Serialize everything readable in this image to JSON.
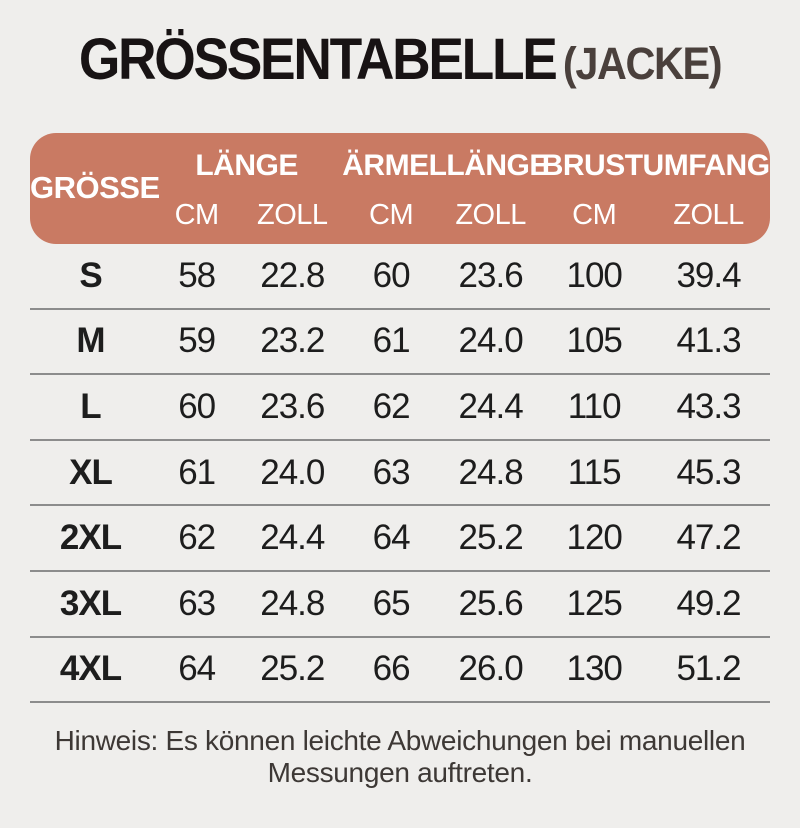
{
  "title": {
    "main": "GRÖSSENTABELLE",
    "suffix": "(JACKE)"
  },
  "table": {
    "size_label": "GRÖSSE",
    "groups": [
      {
        "label": "LÄNGE",
        "units": [
          "CM",
          "ZOLL"
        ]
      },
      {
        "label": "ÄRMELLÄNGE",
        "units": [
          "CM",
          "ZOLL"
        ]
      },
      {
        "label": "BRUSTUMFANG",
        "units": [
          "CM",
          "ZOLL"
        ]
      }
    ],
    "rows": [
      {
        "size": "S",
        "values": [
          "58",
          "22.8",
          "60",
          "23.6",
          "100",
          "39.4"
        ]
      },
      {
        "size": "M",
        "values": [
          "59",
          "23.2",
          "61",
          "24.0",
          "105",
          "41.3"
        ]
      },
      {
        "size": "L",
        "values": [
          "60",
          "23.6",
          "62",
          "24.4",
          "110",
          "43.3"
        ]
      },
      {
        "size": "XL",
        "values": [
          "61",
          "24.0",
          "63",
          "24.8",
          "115",
          "45.3"
        ]
      },
      {
        "size": "2XL",
        "values": [
          "62",
          "24.4",
          "64",
          "25.2",
          "120",
          "47.2"
        ]
      },
      {
        "size": "3XL",
        "values": [
          "63",
          "24.8",
          "65",
          "25.6",
          "125",
          "49.2"
        ]
      },
      {
        "size": "4XL",
        "values": [
          "64",
          "25.2",
          "66",
          "26.0",
          "130",
          "51.2"
        ]
      }
    ]
  },
  "note_lines": [
    "Hinweis: Es können leichte Abweichungen bei manuellen",
    "Messungen auftreten."
  ],
  "colors": {
    "background": "#efeeec",
    "accent": "#c97a63",
    "header_text": "#ffffff",
    "title": "#181314",
    "title_suffix": "#4a403c",
    "divider": "#8c8c8c",
    "body_text": "#1d1d1d",
    "note_text": "#3d3835"
  },
  "chart_data": {
    "type": "table",
    "title": "GRÖSSENTABELLE (JACKE)",
    "columns": [
      "GRÖSSE",
      "LÄNGE CM",
      "LÄNGE ZOLL",
      "ÄRMELLÄNGE CM",
      "ÄRMELLÄNGE ZOLL",
      "BRUSTUMFANG CM",
      "BRUSTUMFANG ZOLL"
    ],
    "rows": [
      [
        "S",
        58,
        22.8,
        60,
        23.6,
        100,
        39.4
      ],
      [
        "M",
        59,
        23.2,
        61,
        24.0,
        105,
        41.3
      ],
      [
        "L",
        60,
        23.6,
        62,
        24.4,
        110,
        43.3
      ],
      [
        "XL",
        61,
        24.0,
        63,
        24.8,
        115,
        45.3
      ],
      [
        "2XL",
        62,
        24.4,
        64,
        25.2,
        120,
        47.2
      ],
      [
        "3XL",
        63,
        24.8,
        65,
        25.6,
        125,
        49.2
      ],
      [
        "4XL",
        64,
        25.2,
        66,
        26.0,
        130,
        51.2
      ]
    ],
    "note": "Hinweis: Es können leichte Abweichungen bei manuellen Messungen auftreten."
  }
}
